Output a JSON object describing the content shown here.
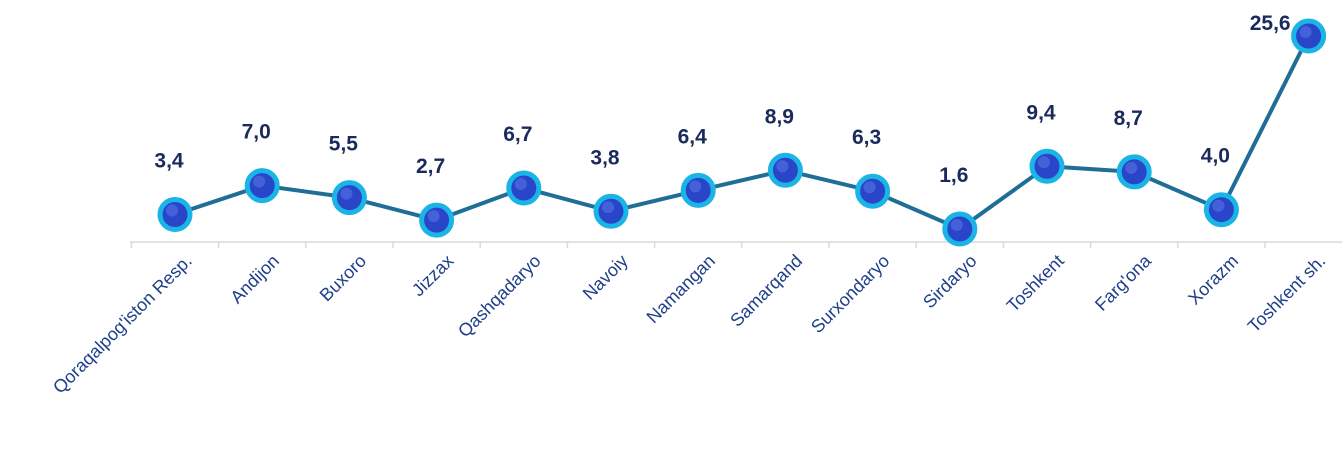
{
  "chart_data": {
    "type": "line",
    "categories": [
      "Qoraqalpog'iston Resp.",
      "Andijon",
      "Buxoro",
      "Jizzax",
      "Qashqadaryo",
      "Navoiy",
      "Namangan",
      "Samarqand",
      "Surxondaryo",
      "Sirdaryo",
      "Toshkent",
      "Farg'ona",
      "Xorazm",
      "Toshkent sh."
    ],
    "values": [
      3.4,
      7.0,
      5.5,
      2.7,
      6.7,
      3.8,
      6.4,
      8.9,
      6.3,
      1.6,
      9.4,
      8.7,
      4.0,
      25.6
    ],
    "data_labels": [
      "3,4",
      "7,0",
      "5,5",
      "2,7",
      "6,7",
      "3,8",
      "6,4",
      "8,9",
      "6,3",
      "1,6",
      "9,4",
      "8,7",
      "4,0",
      "25,6"
    ],
    "title": "",
    "xlabel": "",
    "ylabel": "",
    "ylim": [
      0,
      25.6
    ],
    "grid": false,
    "legend": "none",
    "colors": {
      "line": "#1f6e96",
      "marker_fill": "#2a46c8",
      "marker_ring": "#1ab4e6",
      "label": "#1a2a5c",
      "tick_label": "#1f3f8a",
      "axis": "#d9d9d9"
    }
  }
}
